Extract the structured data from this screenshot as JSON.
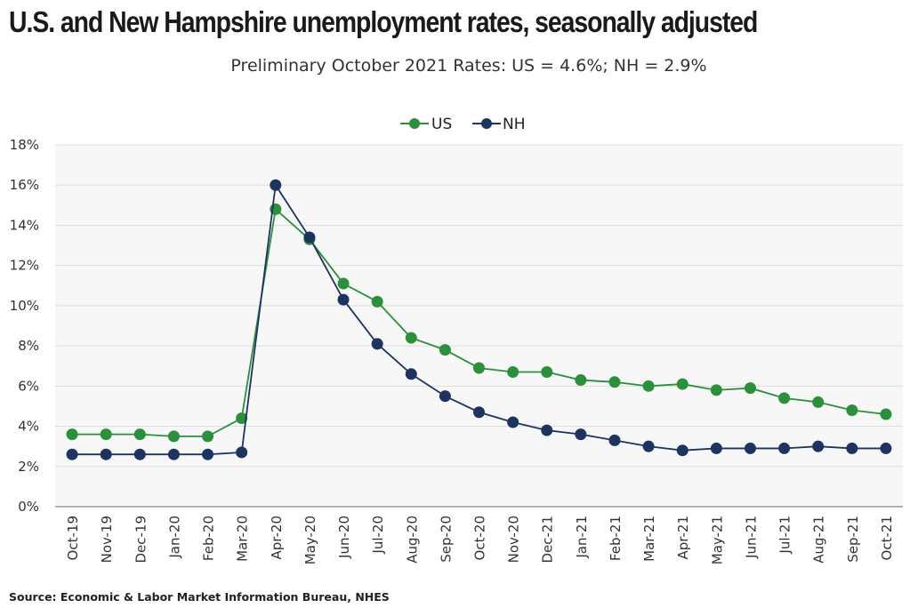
{
  "title": "U.S. and New Hampshire unemployment rates, seasonally adjusted",
  "subtitle": "Preliminary October 2021 Rates: US = 4.6%; NH = 2.9%",
  "source": "Source: Economic & Labor Market Information Bureau, NHES",
  "colors": {
    "US": "#2b8f3c",
    "NH": "#1d3461",
    "plot_bg": "#f7f7f7",
    "grid": "#dddddd"
  },
  "chart_data": {
    "type": "line",
    "title": "U.S. and New Hampshire unemployment rates, seasonally adjusted",
    "subtitle": "Preliminary October 2021 Rates: US = 4.6%; NH = 2.9%",
    "xlabel": "",
    "ylabel": "",
    "ylim": [
      0,
      18
    ],
    "yticks": [
      0,
      2,
      4,
      6,
      8,
      10,
      12,
      14,
      16,
      18
    ],
    "ytick_labels": [
      "0%",
      "2%",
      "4%",
      "6%",
      "8%",
      "10%",
      "12%",
      "14%",
      "16%",
      "18%"
    ],
    "grid": true,
    "legend_position": "top-center",
    "categories": [
      "Oct-19",
      "Nov-19",
      "Dec-19",
      "Jan-20",
      "Feb-20",
      "Mar-20",
      "Apr-20",
      "May-20",
      "Jun-20",
      "Jul-20",
      "Aug-20",
      "Sep-20",
      "Oct-20",
      "Nov-20",
      "Dec-21",
      "Jan-21",
      "Feb-21",
      "Mar-21",
      "Apr-21",
      "May-21",
      "Jun-21",
      "Jul-21",
      "Aug-21",
      "Sep-21",
      "Oct-21"
    ],
    "series": [
      {
        "name": "US",
        "values": [
          3.6,
          3.6,
          3.6,
          3.5,
          3.5,
          4.4,
          14.8,
          13.3,
          11.1,
          10.2,
          8.4,
          7.8,
          6.9,
          6.7,
          6.7,
          6.3,
          6.2,
          6.0,
          6.1,
          5.8,
          5.9,
          5.4,
          5.2,
          4.8,
          4.6
        ]
      },
      {
        "name": "NH",
        "values": [
          2.6,
          2.6,
          2.6,
          2.6,
          2.6,
          2.7,
          16.0,
          13.4,
          10.3,
          8.1,
          6.6,
          5.5,
          4.7,
          4.2,
          3.8,
          3.6,
          3.3,
          3.0,
          2.8,
          2.9,
          2.9,
          2.9,
          3.0,
          2.9,
          2.9
        ]
      }
    ]
  }
}
